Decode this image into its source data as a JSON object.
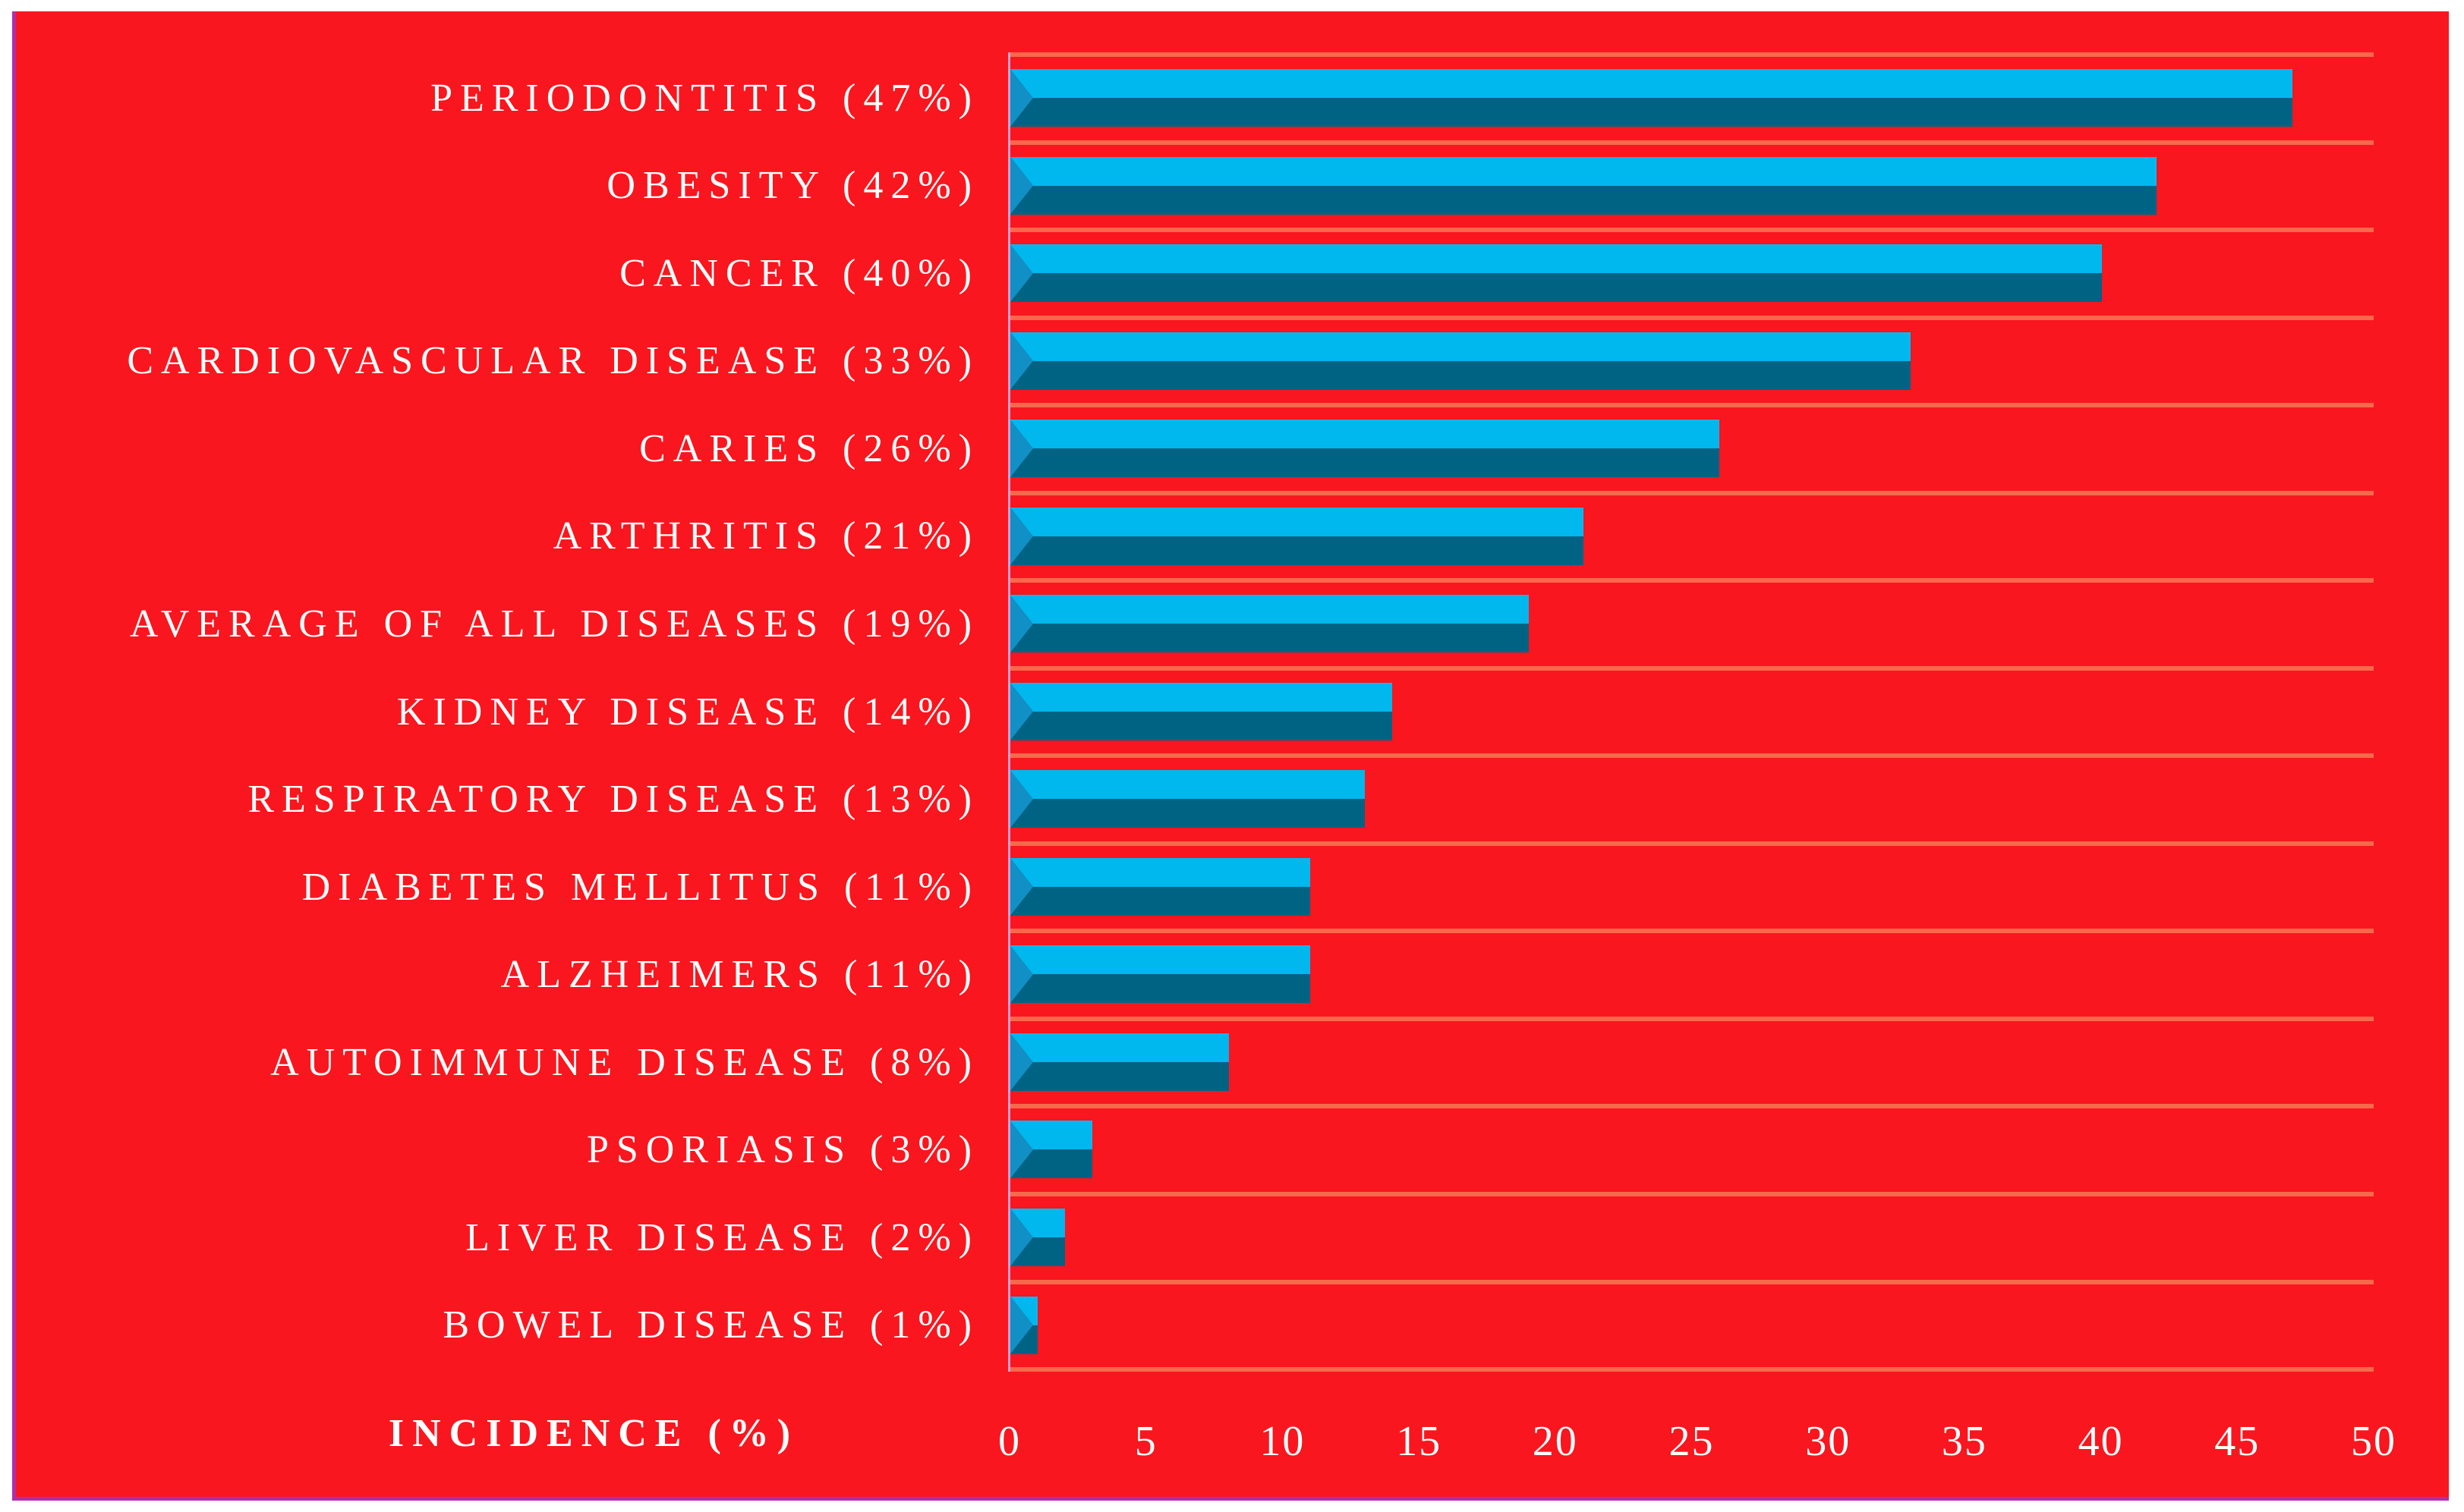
{
  "figure": {
    "colors": {
      "panel_background": "#FA161E",
      "outer_background": "#FFFFFF",
      "border_purple": "#B02FA6",
      "gridline_orange": "#F8694B",
      "bar_top_cyan": "#00B7EE",
      "bar_bottom_teal": "#006384",
      "bar_bevel_blue": "#128FC4",
      "value_axis_line_lavender": "#D49FD1",
      "text_white": "#FFFFFF"
    }
  },
  "chart_data": {
    "type": "bar",
    "orientation": "horizontal",
    "title": "",
    "xlabel": "INCIDENCE (%)",
    "ylabel": "",
    "xlim": [
      0,
      50
    ],
    "xticks": [
      0,
      5,
      10,
      15,
      20,
      25,
      30,
      35,
      40,
      45,
      50
    ],
    "grid": true,
    "legend": "none",
    "categories": [
      "PERIODONTITIS (47%)",
      "OBESITY (42%)",
      "CANCER (40%)",
      "CARDIOVASCULAR DISEASE (33%)",
      "CARIES (26%)",
      "ARTHRITIS (21%)",
      "AVERAGE OF ALL DISEASES (19%)",
      "KIDNEY DISEASE (14%)",
      "RESPIRATORY DISEASE (13%)",
      "DIABETES MELLITUS (11%)",
      "ALZHEIMERS (11%)",
      "AUTOIMMUNE DISEASE (8%)",
      "PSORIASIS (3%)",
      "LIVER DISEASE (2%)",
      "BOWEL DISEASE (1%)"
    ],
    "values": [
      47,
      42,
      40,
      33,
      26,
      21,
      19,
      14,
      13,
      11,
      11,
      8,
      3,
      2,
      1
    ]
  }
}
